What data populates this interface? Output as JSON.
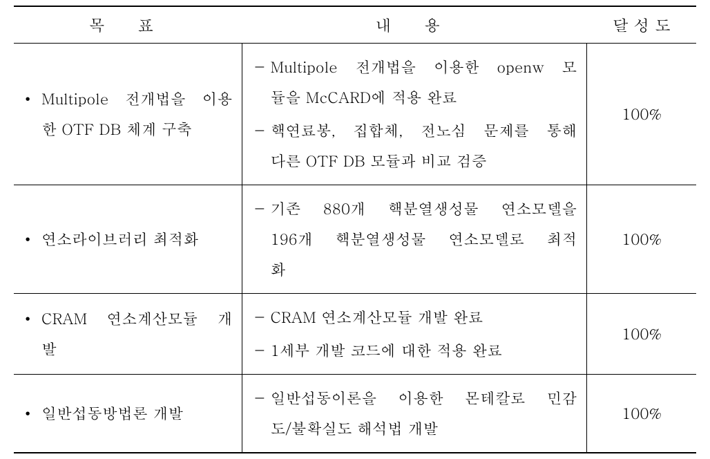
{
  "headers": {
    "goal": "목 표",
    "content": "내 용",
    "status": "달 성 도"
  },
  "rows": [
    {
      "goal_items": [
        {
          "lines": [
            "Multipole 전개법을 이용",
            "한 OTF DB 체계 구축"
          ],
          "justify": [
            true,
            false
          ]
        }
      ],
      "content_items": [
        {
          "lines": [
            "Multipole 전개법을 이용한 openw 모",
            "듈을 McCARD에 적용 완료"
          ],
          "justify": [
            true,
            false
          ]
        },
        {
          "lines": [
            "핵연료봉, 집합체, 전노심 문제를 통해",
            "다른 OTF DB 모듈과 비교 검증"
          ],
          "justify": [
            true,
            false
          ]
        }
      ],
      "status": "100%"
    },
    {
      "goal_items": [
        {
          "lines": [
            "연소라이브러리 최적화"
          ],
          "justify": [
            false
          ]
        }
      ],
      "content_items": [
        {
          "lines": [
            "기존 880개 핵분열생성물 연소모델을",
            "196개 핵분열생성물 연소모델로 최적",
            "화"
          ],
          "justify": [
            true,
            true,
            false
          ]
        }
      ],
      "status": "100%"
    },
    {
      "goal_items": [
        {
          "lines": [
            "CRAM 연소계산모듈 개",
            "발"
          ],
          "justify": [
            true,
            false
          ]
        }
      ],
      "content_items": [
        {
          "lines": [
            "CRAM 연소계산모듈 개발 완료"
          ],
          "justify": [
            false
          ]
        },
        {
          "lines": [
            "1세부 개발 코드에 대한 적용 완료"
          ],
          "justify": [
            false
          ]
        }
      ],
      "status": "100%"
    },
    {
      "goal_items": [
        {
          "lines": [
            "일반섭동방법론 개발"
          ],
          "justify": [
            false
          ]
        }
      ],
      "content_items": [
        {
          "lines": [
            "일반섭동이론을 이용한 몬테칼로 민감",
            "도/불확실도 해석법 개발"
          ],
          "justify": [
            true,
            false
          ]
        }
      ],
      "status": "100%"
    }
  ],
  "style": {
    "bullet_char": "•",
    "dash_char": "－",
    "background": "#ffffff",
    "border_color": "#000000",
    "font_size": 22,
    "header_font_size": 23
  }
}
